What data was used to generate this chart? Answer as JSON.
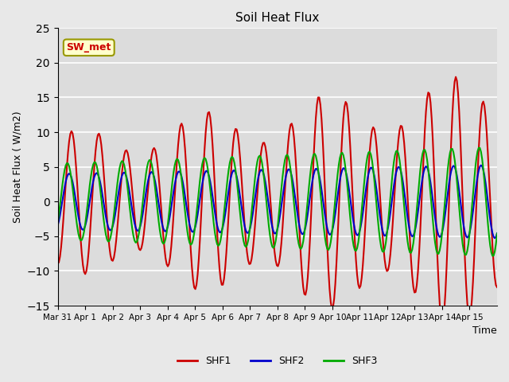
{
  "title": "Soil Heat Flux",
  "xlabel": "Time",
  "ylabel": "Soil Heat Flux ( W/m2)",
  "ylim": [
    -15,
    25
  ],
  "yticks": [
    -15,
    -10,
    -5,
    0,
    5,
    10,
    15,
    20,
    25
  ],
  "xtick_labels": [
    "Mar 31",
    "Apr 1",
    "Apr 2",
    "Apr 3",
    "Apr 4",
    "Apr 5",
    "Apr 6",
    "Apr 7",
    "Apr 8",
    "Apr 9",
    "Apr 10",
    "Apr 11",
    "Apr 12",
    "Apr 13",
    "Apr 14",
    "Apr 15"
  ],
  "legend_labels": [
    "SHF1",
    "SHF2",
    "SHF3"
  ],
  "colors": {
    "SHF1": "#cc0000",
    "SHF2": "#0000cc",
    "SHF3": "#00aa00"
  },
  "annotation_text": "SW_met",
  "annotation_color": "#cc0000",
  "annotation_bg": "#ffffcc",
  "bg_color": "#dcdcdc",
  "grid_color": "#ffffff",
  "linewidth": 1.5,
  "n_days": 16
}
